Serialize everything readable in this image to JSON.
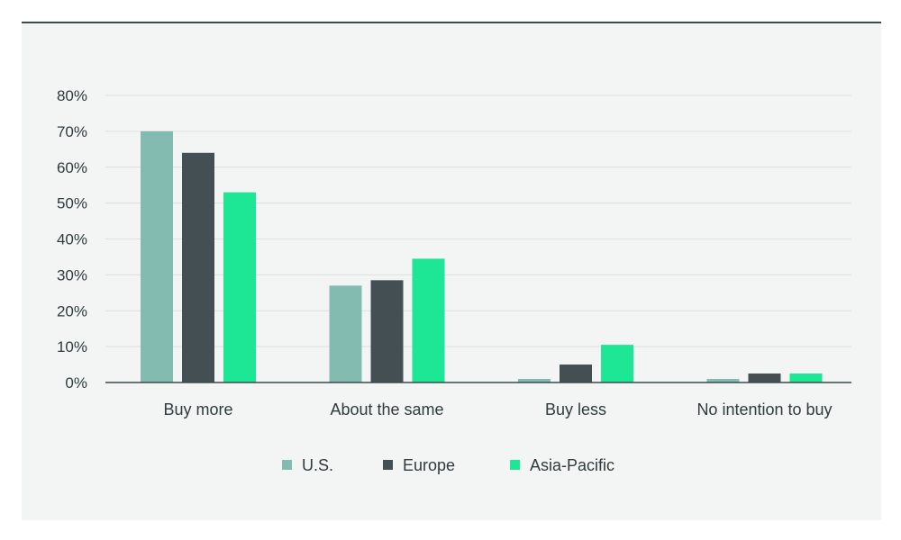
{
  "chart_data": {
    "type": "bar",
    "categories": [
      "Buy more",
      "About the same",
      "Buy less",
      "No intention to buy"
    ],
    "series": [
      {
        "name": "U.S.",
        "color": "#84bbb0",
        "values": [
          70,
          27,
          1,
          1
        ]
      },
      {
        "name": "Europe",
        "color": "#434f52",
        "values": [
          64,
          28.5,
          5,
          2.5
        ]
      },
      {
        "name": "Asia-Pacific",
        "color": "#1de694",
        "values": [
          53,
          34.5,
          10.5,
          2.5
        ]
      }
    ],
    "y_ticks": [
      "0%",
      "10%",
      "20%",
      "30%",
      "40%",
      "50%",
      "60%",
      "70%",
      "80%"
    ],
    "ylim": [
      0,
      80
    ],
    "grid": true,
    "legend_position": "bottom-center"
  }
}
